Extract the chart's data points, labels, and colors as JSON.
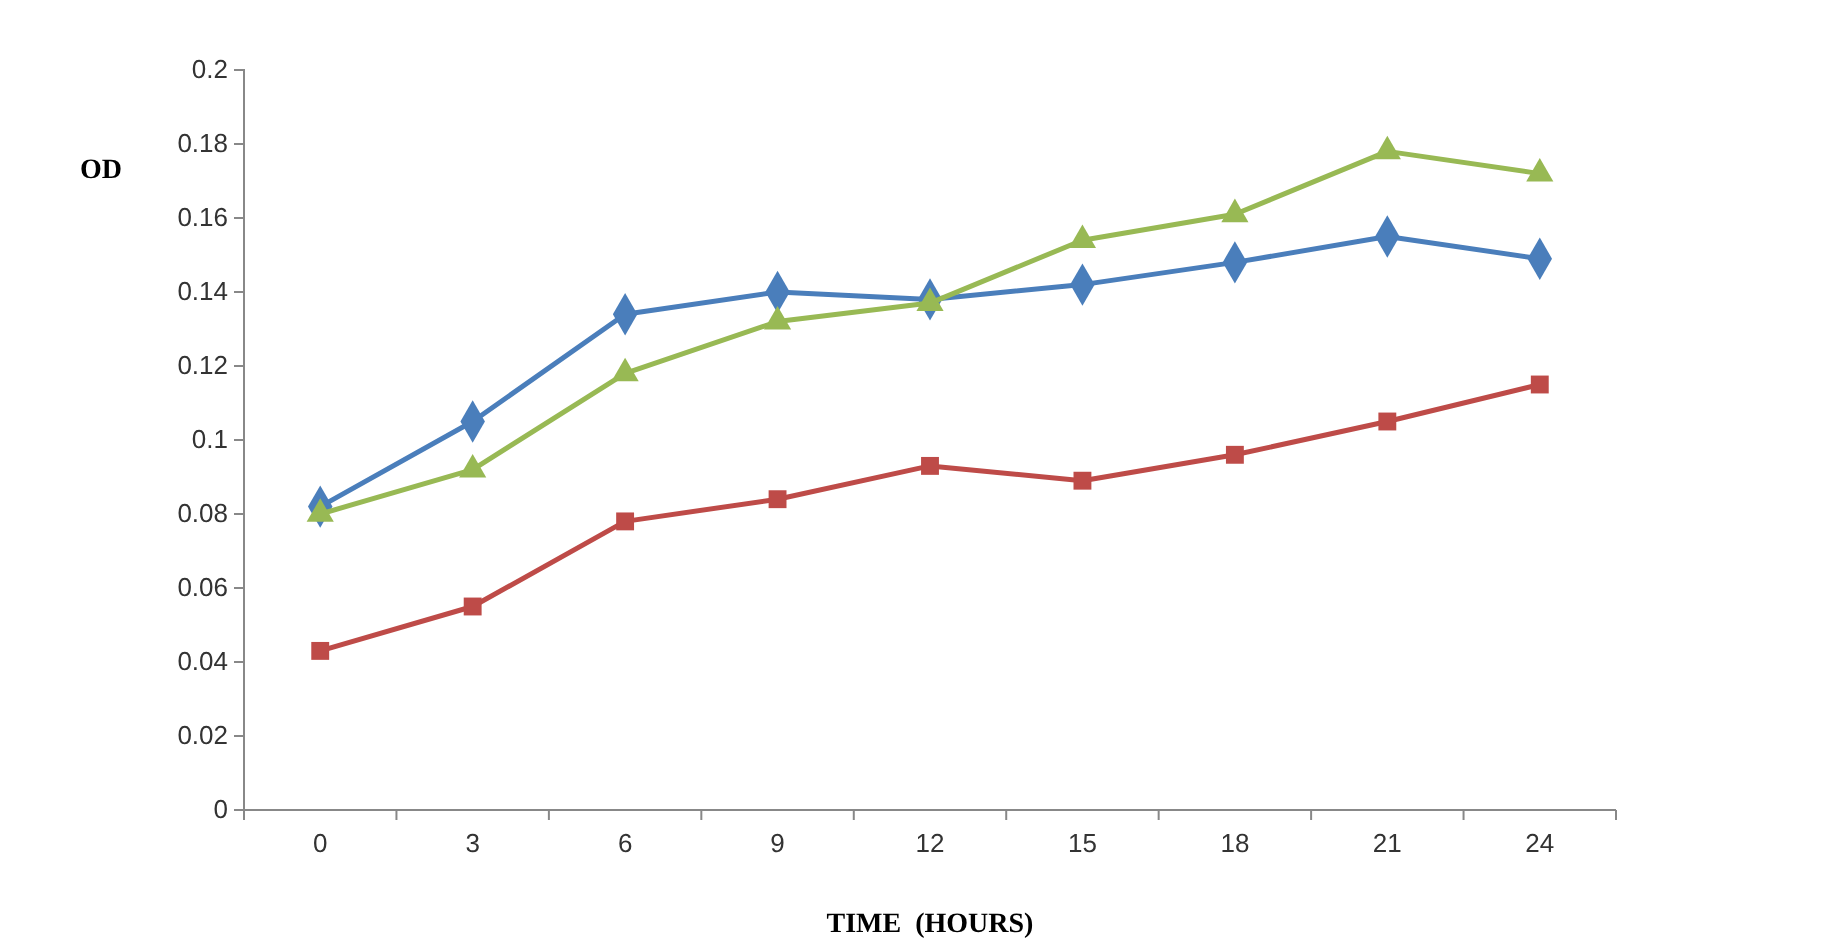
{
  "chart_data": {
    "type": "line",
    "xlabel": "TIME  (HOURS)",
    "ylabel": "OD",
    "categories": [
      "0",
      "3",
      "6",
      "9",
      "12",
      "15",
      "18",
      "21",
      "24"
    ],
    "ylim": [
      0,
      0.2
    ],
    "yticks": [
      0,
      0.02,
      0.04,
      0.06,
      0.08,
      0.1,
      0.12,
      0.14,
      0.16,
      0.18,
      0.2
    ],
    "grid": false,
    "series": [
      {
        "color": "#4a7ebb",
        "marker": "diamond",
        "values": [
          0.082,
          0.105,
          0.134,
          0.14,
          0.138,
          0.142,
          0.148,
          0.155,
          0.149
        ]
      },
      {
        "color": "#be4b48",
        "marker": "square",
        "values": [
          0.043,
          0.055,
          0.078,
          0.084,
          0.093,
          0.089,
          0.096,
          0.105,
          0.115
        ]
      },
      {
        "color": "#98b954",
        "marker": "triangle",
        "values": [
          0.08,
          0.092,
          0.118,
          0.132,
          0.137,
          0.154,
          0.161,
          0.178,
          0.172
        ]
      }
    ]
  }
}
